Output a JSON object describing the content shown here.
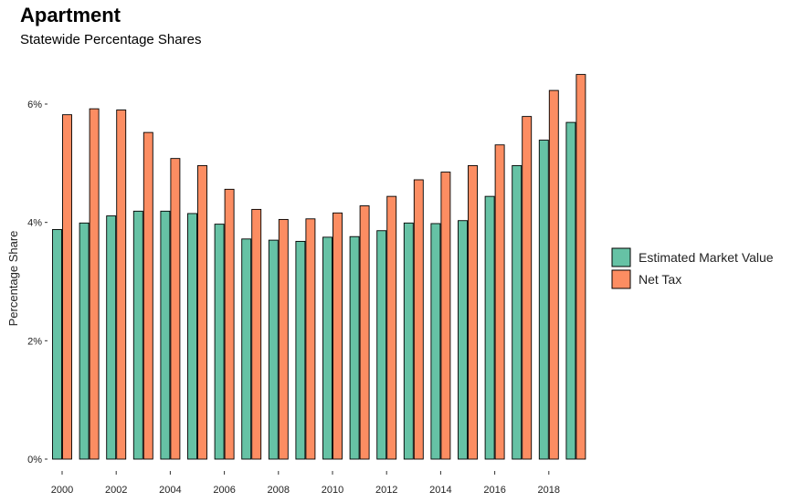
{
  "chart_data": {
    "type": "bar",
    "title": "Apartment",
    "subtitle": "Statewide Percentage Shares",
    "xlabel": "",
    "ylabel": "Percentage Share",
    "ylim": [
      0,
      6.5
    ],
    "yticks": [
      0,
      2,
      4,
      6
    ],
    "ytick_labels": [
      "0%",
      "2%",
      "4%",
      "6%"
    ],
    "x": [
      2000,
      2001,
      2002,
      2003,
      2004,
      2005,
      2006,
      2007,
      2008,
      2009,
      2010,
      2011,
      2012,
      2013,
      2014,
      2015,
      2016,
      2017,
      2018,
      2019
    ],
    "xtick_labels": [
      "2000",
      "2002",
      "2004",
      "2006",
      "2008",
      "2010",
      "2012",
      "2014",
      "2016",
      "2018"
    ],
    "xtick_values": [
      2000,
      2002,
      2004,
      2006,
      2008,
      2010,
      2012,
      2014,
      2016,
      2018
    ],
    "grid": false,
    "legend_position": "right",
    "series": [
      {
        "name": "Estimated Market Value",
        "color": "#66c2a5",
        "values": [
          3.88,
          3.99,
          4.11,
          4.19,
          4.19,
          4.15,
          3.97,
          3.72,
          3.7,
          3.68,
          3.75,
          3.76,
          3.86,
          3.99,
          3.98,
          4.03,
          4.44,
          4.96,
          5.39,
          5.69
        ]
      },
      {
        "name": "Net Tax",
        "color": "#fc8d62",
        "values": [
          5.82,
          5.92,
          5.9,
          5.52,
          5.08,
          4.96,
          4.56,
          4.22,
          4.05,
          4.06,
          4.16,
          4.28,
          4.44,
          4.72,
          4.85,
          4.96,
          5.31,
          5.79,
          6.23,
          6.5
        ]
      }
    ]
  }
}
